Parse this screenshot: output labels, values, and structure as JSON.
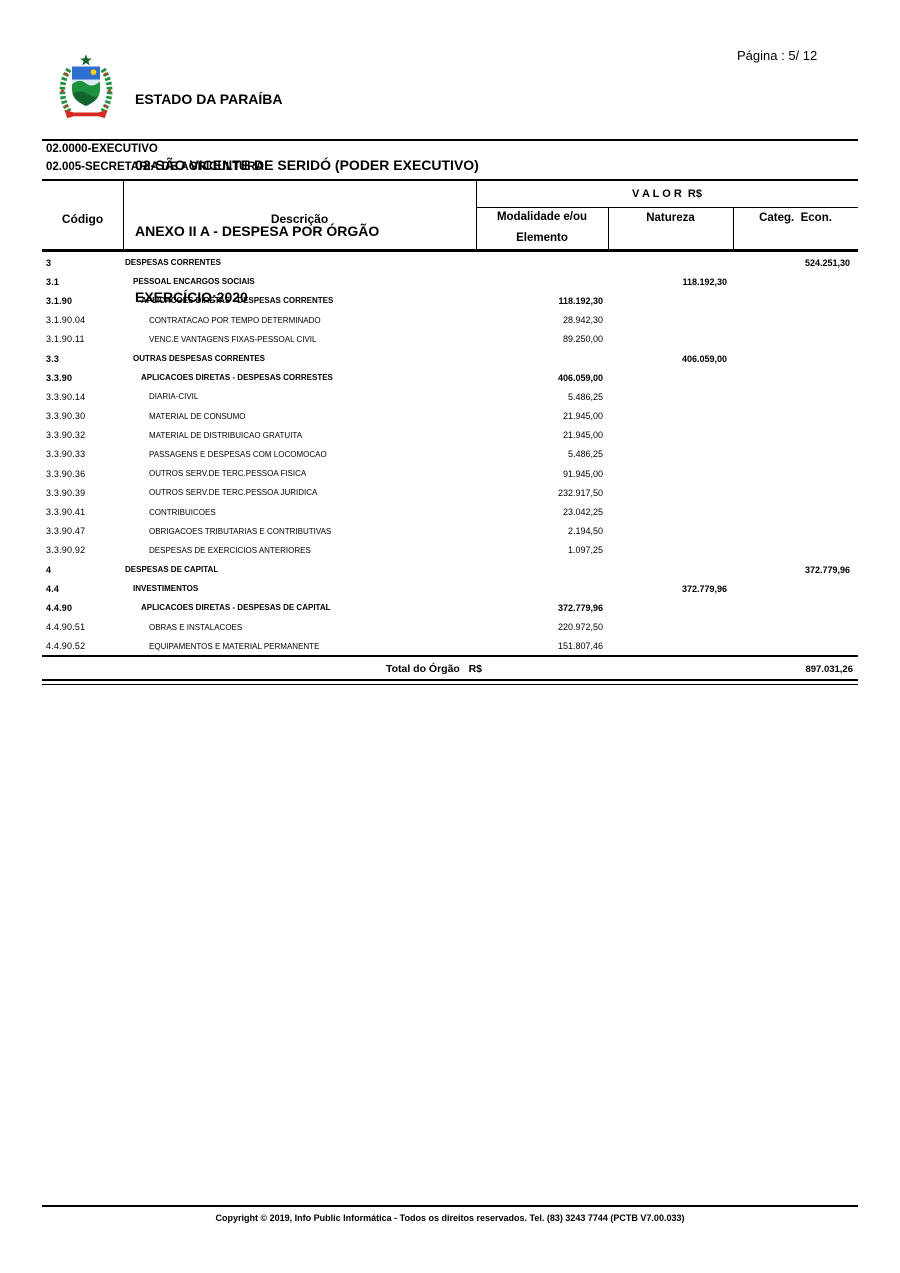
{
  "header": {
    "title_lines": [
      "ESTADO DA PARAÍBA",
      "02-SÃO VICENTE DE SERIDÓ (PODER EXECUTIVO)",
      "ANEXO II A - DESPESA POR ÓRGÃO",
      "EXERCÍCIO:2020"
    ],
    "page_label": "Página : 5/ 12",
    "logo_colors": {
      "green": "#1f9240",
      "dark_green": "#10662c",
      "blue": "#2f6fd0",
      "yellow": "#ffd200",
      "red": "#d42a20"
    }
  },
  "section": {
    "line1": "02.0000-EXECUTIVO",
    "line2": "02.005-SECRETARIA DE AGRICULTURA"
  },
  "table": {
    "headers": {
      "codigo": "Código",
      "descricao": "Descrição",
      "valor_group": "V A L O R  R$",
      "modalidade_line1": "Modalidade e/ou",
      "modalidade_line2": "Elemento",
      "natureza": "Natureza",
      "categ": "Categ.  Econ."
    },
    "rows": [
      {
        "code": "3",
        "desc": "DESPESAS CORRENTES",
        "m": "",
        "n": "",
        "c": "524.251,30"
      },
      {
        "code": "3.1",
        "desc": "PESSOAL ENCARGOS SOCIAIS",
        "m": "",
        "n": "118.192,30",
        "c": ""
      },
      {
        "code": "3.1.90",
        "desc": "APLICACOES DIRETAS - DESPESAS CORRENTES",
        "m": "118.192,30",
        "n": "",
        "c": ""
      },
      {
        "code": "3.1.90.04",
        "desc": "CONTRATACAO POR TEMPO DETERMINADO",
        "m": "28.942,30",
        "n": "",
        "c": ""
      },
      {
        "code": "3.1.90.11",
        "desc": "VENC.E VANTAGENS FIXAS-PESSOAL CIVIL",
        "m": "89.250,00",
        "n": "",
        "c": ""
      },
      {
        "code": "3.3",
        "desc": "OUTRAS DESPESAS CORRENTES",
        "m": "",
        "n": "406.059,00",
        "c": ""
      },
      {
        "code": "3.3.90",
        "desc": "APLICACOES DIRETAS - DESPESAS CORRESTES",
        "m": "406.059,00",
        "n": "",
        "c": ""
      },
      {
        "code": "3.3.90.14",
        "desc": "DIARIA-CIVIL",
        "m": "5.486,25",
        "n": "",
        "c": ""
      },
      {
        "code": "3.3.90.30",
        "desc": "MATERIAL DE CONSUMO",
        "m": "21.945,00",
        "n": "",
        "c": ""
      },
      {
        "code": "3.3.90.32",
        "desc": "MATERIAL DE DISTRIBUICAO GRATUITA",
        "m": "21.945,00",
        "n": "",
        "c": ""
      },
      {
        "code": "3.3.90.33",
        "desc": "PASSAGENS E DESPESAS COM LOCOMOCAO",
        "m": "5.486,25",
        "n": "",
        "c": ""
      },
      {
        "code": "3.3.90.36",
        "desc": "OUTROS SERV.DE TERC.PESSOA FISICA",
        "m": "91.945,00",
        "n": "",
        "c": ""
      },
      {
        "code": "3.3.90.39",
        "desc": "OUTROS SERV.DE TERC.PESSOA JURIDICA",
        "m": "232.917,50",
        "n": "",
        "c": ""
      },
      {
        "code": "3.3.90.41",
        "desc": "CONTRIBUICOES",
        "m": "23.042,25",
        "n": "",
        "c": ""
      },
      {
        "code": "3.3.90.47",
        "desc": "OBRIGACOES TRIBUTARIAS E CONTRIBUTIVAS",
        "m": "2.194,50",
        "n": "",
        "c": ""
      },
      {
        "code": "3.3.90.92",
        "desc": "DESPESAS DE EXERCICIOS ANTERIORES",
        "m": "1.097,25",
        "n": "",
        "c": ""
      },
      {
        "code": "4",
        "desc": "DESPESAS DE CAPITAL",
        "m": "",
        "n": "",
        "c": "372.779,96"
      },
      {
        "code": "4.4",
        "desc": "INVESTIMENTOS",
        "m": "",
        "n": "372.779,96",
        "c": ""
      },
      {
        "code": "4.4.90",
        "desc": "APLICACOES DIRETAS - DESPESAS DE CAPITAL",
        "m": "372.779,96",
        "n": "",
        "c": ""
      },
      {
        "code": "4.4.90.51",
        "desc": "OBRAS E INSTALACOES",
        "m": "220.972,50",
        "n": "",
        "c": ""
      },
      {
        "code": "4.4.90.52",
        "desc": "EQUIPAMENTOS E MATERIAL PERMANENTE",
        "m": "151.807,46",
        "n": "",
        "c": ""
      }
    ],
    "total_label": "Total do Órgão   R$",
    "total_value": "897.031,26"
  },
  "footer": {
    "copyright": "Copyright © 2019, Info Public Informática - Todos os direitos reservados. Tel. (83) 3243 7744 (PCTB V7.00.033)"
  }
}
